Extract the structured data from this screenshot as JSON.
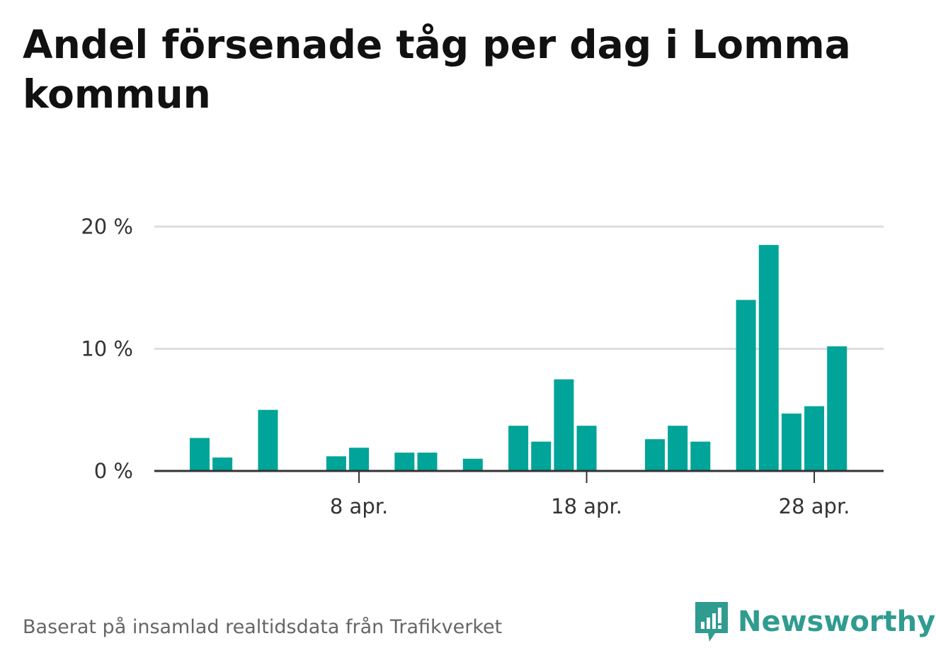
{
  "title": "Andel försenade tåg per dag i Lomma kommun",
  "footer": "Baserat på insamlad realtidsdata från Trafikverket",
  "brand": "Newsworthy",
  "colors": {
    "bar": "#00a499",
    "grid": "#dddddd",
    "axis": "#333333",
    "brand": "#2f9c8f"
  },
  "chart_data": {
    "type": "bar",
    "x": [
      1,
      2,
      3,
      4,
      5,
      6,
      7,
      8,
      9,
      10,
      11,
      12,
      13,
      14,
      15,
      16,
      17,
      18,
      19,
      20,
      21,
      22,
      23,
      24,
      25,
      26,
      27,
      28,
      29,
      30
    ],
    "values": [
      2.7,
      1.1,
      0,
      5.0,
      0,
      0,
      1.2,
      1.9,
      0,
      1.5,
      1.5,
      0,
      1.0,
      0,
      3.7,
      2.4,
      7.5,
      3.7,
      0,
      0,
      2.6,
      3.7,
      2.4,
      0,
      14.0,
      18.5,
      4.7,
      5.3,
      10.2,
      0
    ],
    "x_ticks": [
      {
        "x": 8,
        "label": "8 apr."
      },
      {
        "x": 18,
        "label": "18 apr."
      },
      {
        "x": 28,
        "label": "28 apr."
      }
    ],
    "y_ticks": [
      {
        "value": 0,
        "label": "0 %"
      },
      {
        "value": 10,
        "label": "10 %"
      },
      {
        "value": 20,
        "label": "20 %"
      }
    ],
    "ylim": [
      0,
      20
    ],
    "grid": true
  }
}
